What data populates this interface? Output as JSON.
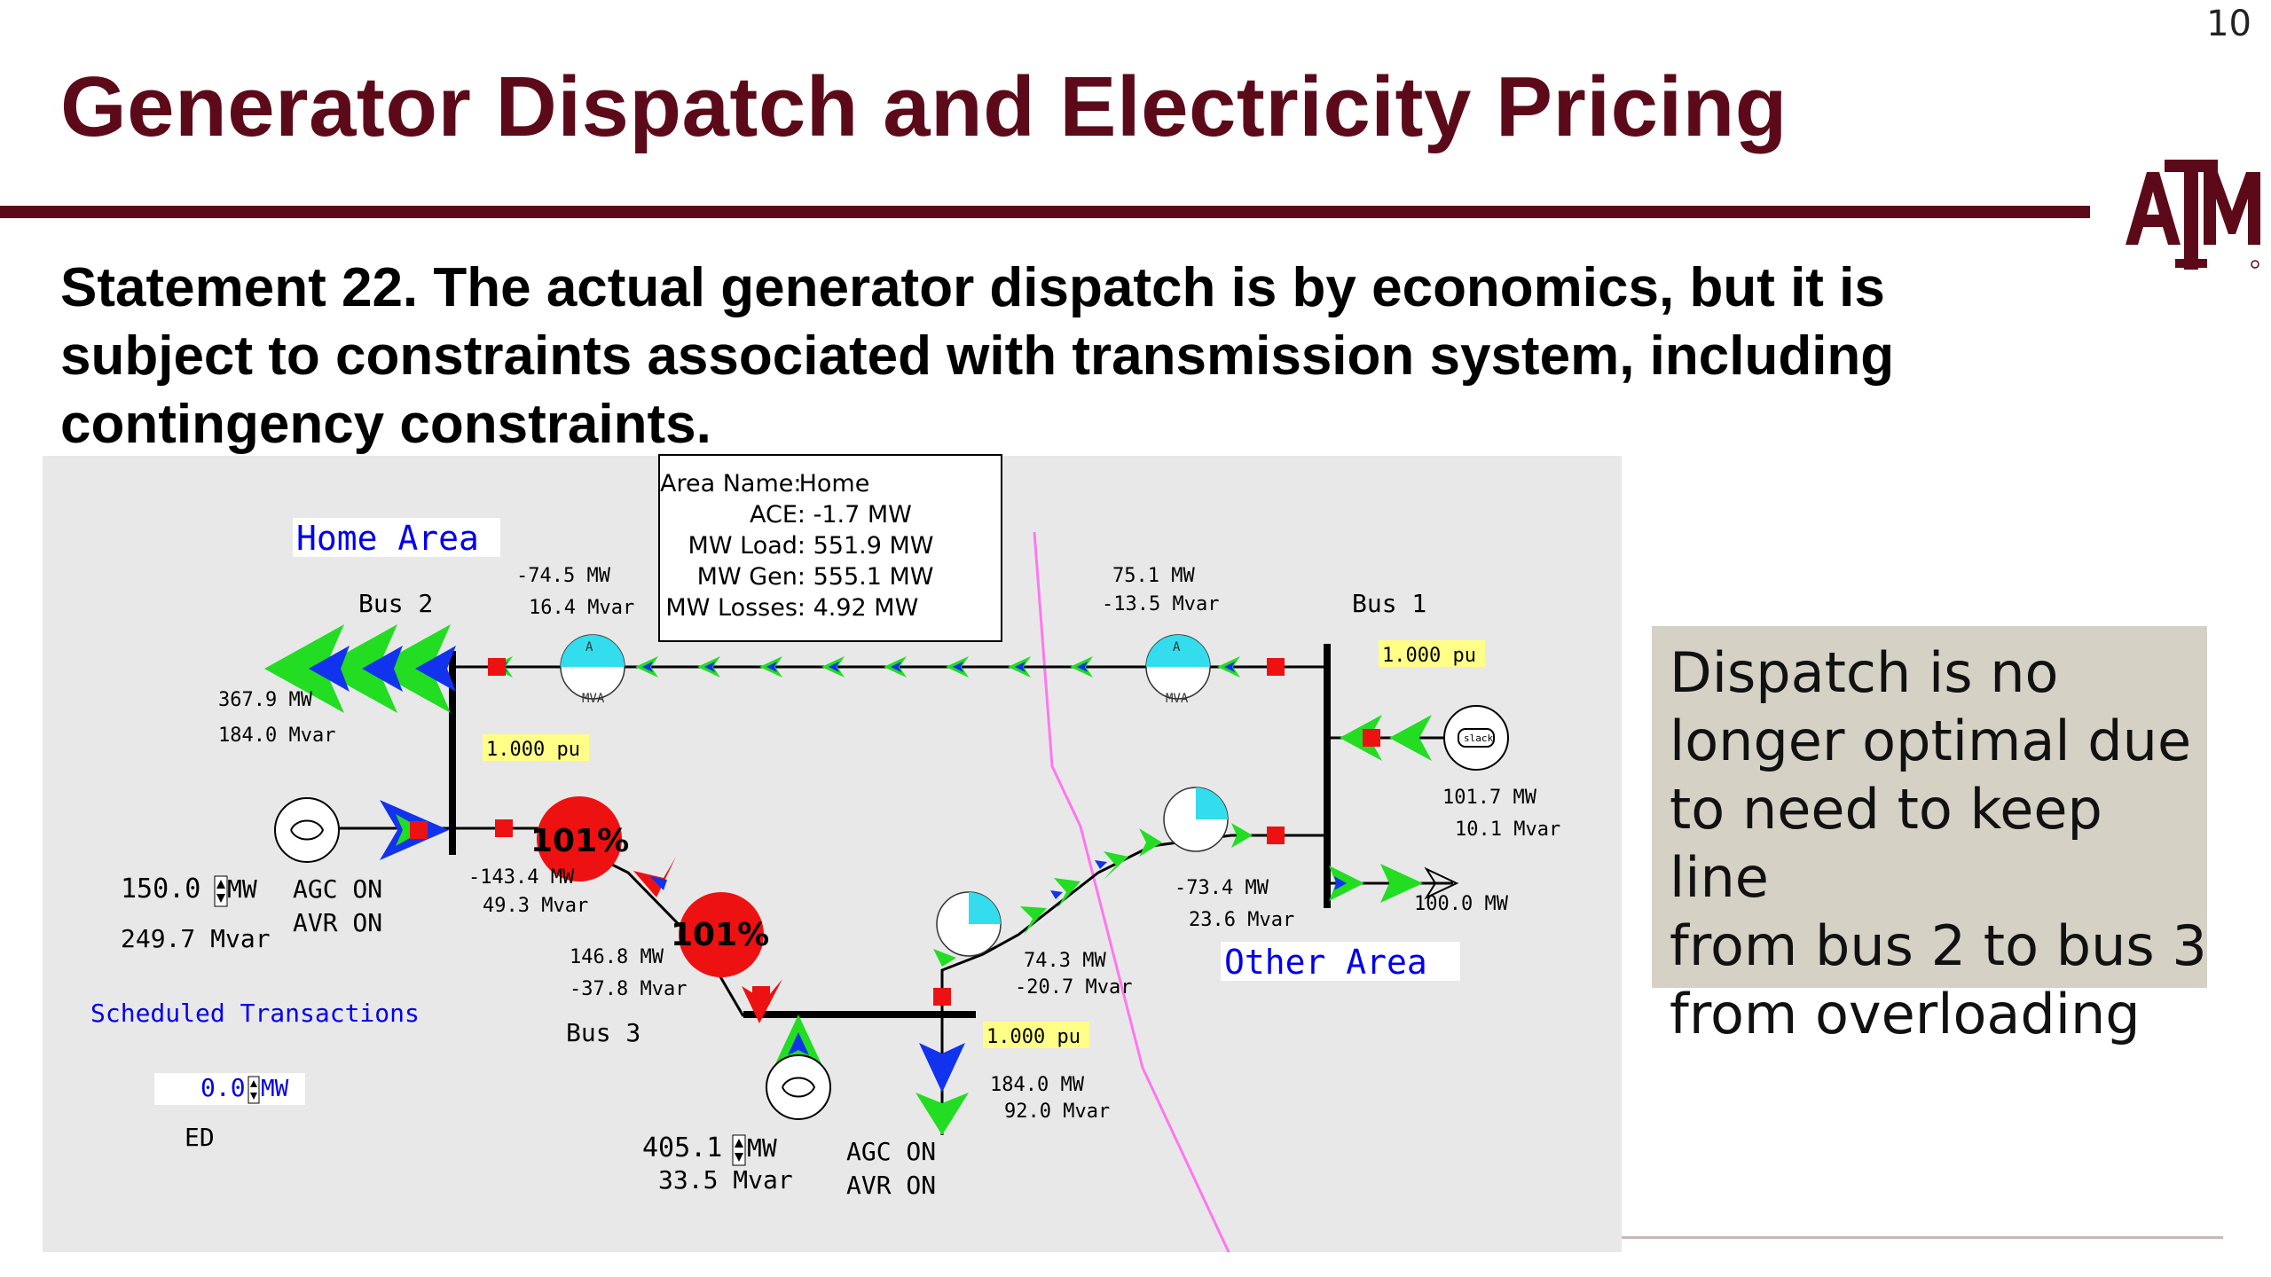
{
  "slide": {
    "number": "10",
    "title": "Generator Dispatch and Electricity Pricing",
    "statement_lines": [
      "Statement 22. The actual generator dispatch is by economics, but it is",
      "subject to constraints associated with transmission system, including",
      "contingency constraints."
    ]
  },
  "logo": {
    "text": "ATM",
    "name": "texas-am-logo",
    "color": "#5c0a1a"
  },
  "note": {
    "lines": [
      "Dispatch is no",
      "longer optimal due",
      "to need to keep line",
      "from bus 2 to bus 3",
      "from overloading"
    ]
  },
  "area_popup": {
    "rows": [
      {
        "label": "Area Name:",
        "value": "Home"
      },
      {
        "label": "ACE:",
        "value": "-1.7 MW"
      },
      {
        "label": "MW Load:",
        "value": "551.9 MW"
      },
      {
        "label": "MW Gen:",
        "value": "555.1 MW"
      },
      {
        "label": "MW Losses:",
        "value": "4.92 MW"
      }
    ]
  },
  "oneline": {
    "colors": {
      "flow_green": "#22dd22",
      "flow_blue": "#1133ee",
      "breaker_red": "#ee1111",
      "overload_red": "#ee1111",
      "meter_cyan": "#33ddee",
      "area_boundary": "#ff77ee",
      "label_blue": "#0000ee",
      "pu_box": "#ffff88"
    },
    "areas": {
      "home": "Home Area",
      "other": "Other Area"
    },
    "buses": {
      "bus1": "Bus 1",
      "bus2": "Bus 2",
      "bus3": "Bus 3"
    },
    "voltages": {
      "bus1": "1.000 pu",
      "bus2": "1.000 pu",
      "bus3": "1.000 pu"
    },
    "bus2_load": {
      "mw": "367.9 MW",
      "mvar": "184.0 Mvar"
    },
    "gen2": {
      "mw_value": "150.0",
      "mw_unit": "MW",
      "mvar": "249.7 Mvar",
      "agc": "AGC ON",
      "avr": "AVR ON"
    },
    "line_2_1_bus2_end": {
      "mw": "-74.5 MW",
      "mvar": "16.4 Mvar"
    },
    "line_2_1_bus1_end": {
      "mw": "75.1 MW",
      "mvar": "-13.5 Mvar"
    },
    "line_2_3_bus2_end": {
      "mw": "-143.4 MW",
      "mvar": "49.3 Mvar",
      "loading": "101%"
    },
    "line_2_3_bus3_end": {
      "mw": "146.8 MW",
      "mvar": "-37.8 Mvar",
      "loading": "101%"
    },
    "line_1_3_bus1_end": {
      "mw": "-73.4 MW",
      "mvar": "23.6 Mvar"
    },
    "line_1_3_bus3_end": {
      "mw": "74.3 MW",
      "mvar": "-20.7 Mvar"
    },
    "gen1": {
      "mw": "101.7 MW",
      "mvar": "10.1 Mvar",
      "symbol_label": "slack"
    },
    "bus1_load": {
      "mw": "100.0 MW"
    },
    "bus3_load": {
      "mw": "184.0 MW",
      "mvar": "92.0 Mvar"
    },
    "gen3": {
      "mw_value": "405.1",
      "mw_unit": "MW",
      "mvar": "33.5 Mvar",
      "agc": "AGC ON",
      "avr": "AVR ON"
    },
    "scheduled_transactions": {
      "label": "Scheduled Transactions",
      "mw_value": "0.0",
      "mw_unit": "MW"
    },
    "mode": "ED",
    "meter_mva_label": "MVA",
    "meter_a_label": "A",
    "line_flow_percent": [
      0.28,
      0.28,
      0.72,
      0.72,
      0.55,
      0.55
    ],
    "line_loading_fraction": [
      1.01,
      1.01
    ]
  }
}
